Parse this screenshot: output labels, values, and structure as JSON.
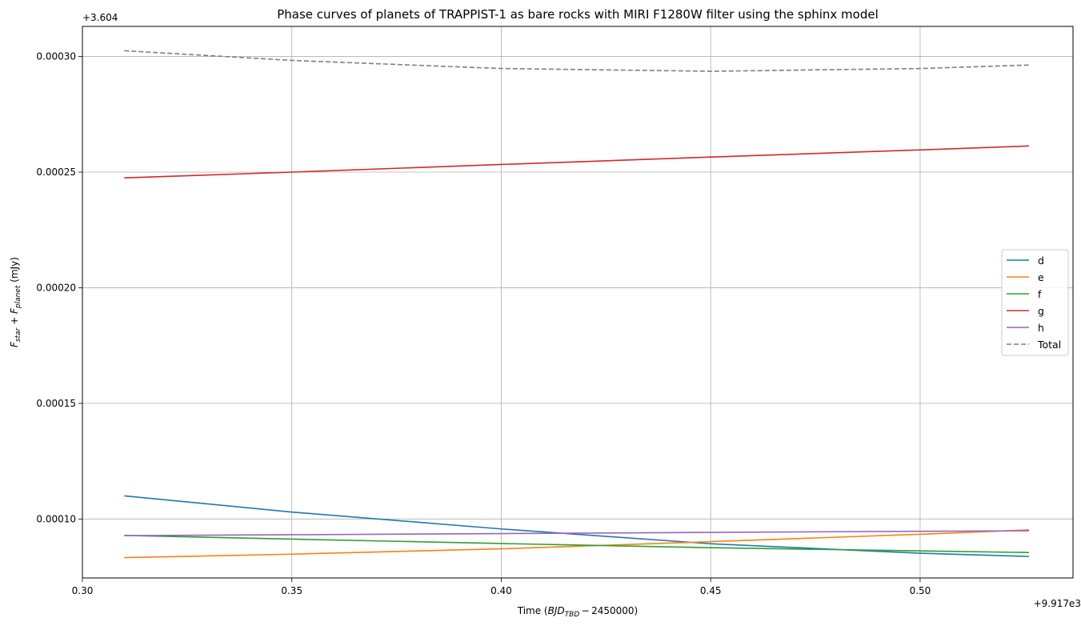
{
  "chart_data": {
    "type": "line",
    "title": "Phase curves of planets of TRAPPIST-1 as bare rocks with MIRI F1280W filter using the sphinx model",
    "xlabel": "Time ($BJD_{TBD} - 2450000$)",
    "ylabel": "$F_{star} + F_{planet}$ (mJy)",
    "x_offset_label": "+9.917e3",
    "y_offset_label": "+3.604",
    "xlim": [
      0.3,
      0.5365
    ],
    "ylim": [
      7.45e-05,
      0.000313
    ],
    "x_ticks": [
      0.3,
      0.35,
      0.4,
      0.45,
      0.5
    ],
    "x_tick_labels": [
      "0.30",
      "0.35",
      "0.40",
      "0.45",
      "0.50"
    ],
    "y_ticks": [
      0.0001,
      0.00015,
      0.0002,
      0.00025,
      0.0003
    ],
    "y_tick_labels": [
      "0.00010",
      "0.00015",
      "0.00020",
      "0.00025",
      "0.00030"
    ],
    "grid": true,
    "legend_position": "center right",
    "x": [
      0.31,
      0.35,
      0.4,
      0.45,
      0.5,
      0.526
    ],
    "series": [
      {
        "name": "d",
        "color": "#1f77b4",
        "style": "solid",
        "values": [
          0.00011,
          0.000103,
          9.57e-05,
          8.93e-05,
          8.52e-05,
          8.38e-05
        ]
      },
      {
        "name": "e",
        "color": "#ff7f0e",
        "style": "solid",
        "values": [
          8.33e-05,
          8.48e-05,
          8.71e-05,
          9.02e-05,
          9.34e-05,
          9.53e-05
        ]
      },
      {
        "name": "f",
        "color": "#2ca02c",
        "style": "solid",
        "values": [
          9.29e-05,
          9.13e-05,
          8.94e-05,
          8.76e-05,
          8.62e-05,
          8.55e-05
        ]
      },
      {
        "name": "g",
        "color": "#d62728",
        "style": "solid",
        "values": [
          0.0002475,
          0.00025,
          0.0002533,
          0.0002565,
          0.0002596,
          0.0002613
        ]
      },
      {
        "name": "h",
        "color": "#9467bd",
        "style": "solid",
        "values": [
          9.28e-05,
          9.32e-05,
          9.37e-05,
          9.42e-05,
          9.47e-05,
          9.49e-05
        ]
      },
      {
        "name": "Total",
        "color": "#7f7f7f",
        "style": "dashed",
        "values": [
          0.0003025,
          0.0002983,
          0.0002948,
          0.0002936,
          0.0002948,
          0.0002963
        ]
      }
    ]
  }
}
